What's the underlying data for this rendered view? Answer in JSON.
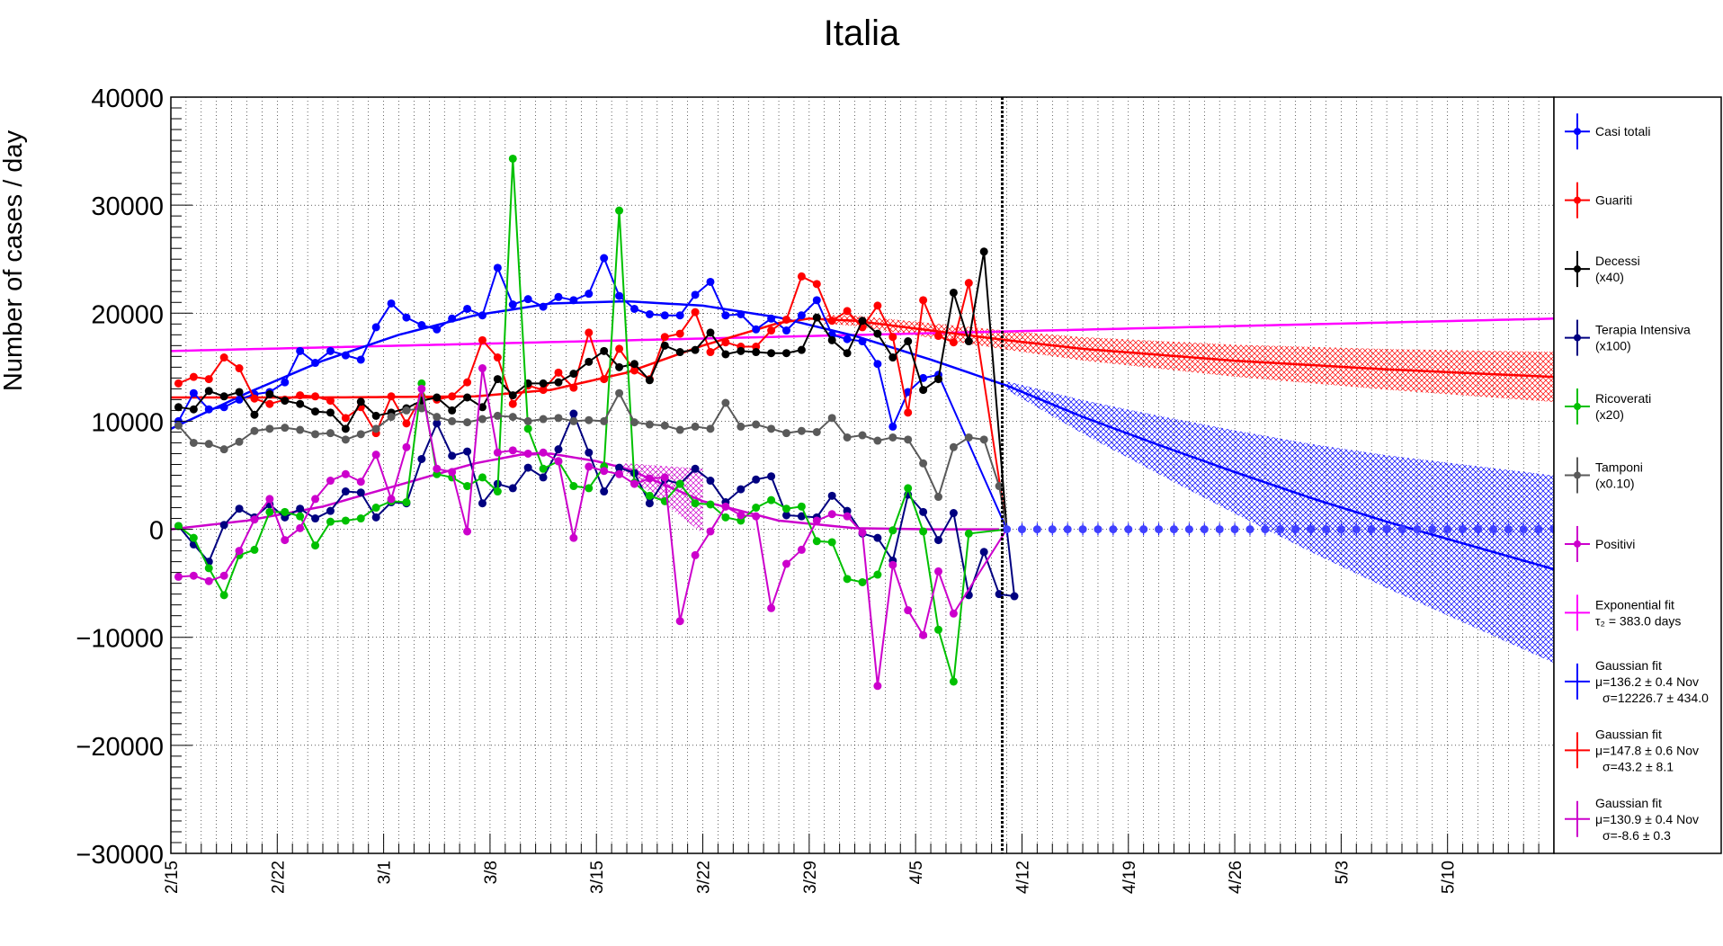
{
  "chart_data": {
    "type": "line",
    "title": "Italia",
    "xlabel": "",
    "ylabel": "Number of cases / day",
    "ylim": [
      -30000,
      40000
    ],
    "yticks": [
      -30000,
      -20000,
      -10000,
      0,
      10000,
      20000,
      30000,
      40000
    ],
    "ytick_labels": [
      "−30000",
      "−20000",
      "−10000",
      "0",
      "10000",
      "20000",
      "30000",
      "40000"
    ],
    "xlim_days": [
      0,
      91
    ],
    "x_ticks": [
      {
        "day": 0,
        "label": "2/15"
      },
      {
        "day": 7,
        "label": "2/22"
      },
      {
        "day": 14,
        "label": "3/1"
      },
      {
        "day": 21,
        "label": "3/8"
      },
      {
        "day": 28,
        "label": "3/15"
      },
      {
        "day": 35,
        "label": "3/22"
      },
      {
        "day": 42,
        "label": "3/29"
      },
      {
        "day": 49,
        "label": "4/5"
      },
      {
        "day": 56,
        "label": "4/12"
      },
      {
        "day": 63,
        "label": "4/19"
      },
      {
        "day": 70,
        "label": "4/26"
      },
      {
        "day": 77,
        "label": "5/3"
      },
      {
        "day": 84,
        "label": "5/10"
      }
    ],
    "grid": true,
    "vline_day": 54.7,
    "legend_position": "right",
    "series": [
      {
        "name": "Casi totali",
        "note": "",
        "color": "#0000ff",
        "x_start_day": 0.5,
        "values": [
          10000,
          12600,
          11100,
          11300,
          12000,
          12500,
          12700,
          13600,
          16500,
          15400,
          16500,
          16100,
          15700,
          18700,
          20900,
          19600,
          18900,
          18500,
          19500,
          20400,
          19800,
          24200,
          20800,
          21300,
          20600,
          21500,
          21200,
          21800,
          25100,
          21600,
          20400,
          19900,
          19800,
          19800,
          21700,
          22900,
          19800,
          19900,
          18500,
          19500,
          18400,
          19800,
          21200,
          18000,
          17600,
          17400,
          15300,
          9500,
          12700,
          14000,
          14300
        ]
      },
      {
        "name": "Guariti",
        "note": "",
        "color": "#ff0000",
        "x_start_day": 0.5,
        "values": [
          13500,
          14100,
          13900,
          15900,
          14900,
          12100,
          11600,
          12000,
          12400,
          12300,
          11900,
          10300,
          11300,
          8900,
          12300,
          9800,
          12300,
          12000,
          12300,
          13600,
          17500,
          15900,
          11600,
          13300,
          12900,
          14500,
          13100,
          18200,
          13900,
          16700,
          14700,
          13900,
          17800,
          18100,
          20100,
          16400,
          17300,
          16900,
          16900,
          18400,
          19400,
          23400,
          22700,
          19300,
          20200,
          18700,
          20700,
          17800,
          10800,
          21200,
          17900,
          17300,
          22800
        ]
      },
      {
        "name": "Decessi",
        "note": "(x40)",
        "color": "#000000",
        "x_start_day": 0.5,
        "values": [
          11300,
          11100,
          12800,
          12300,
          12700,
          10600,
          12500,
          11900,
          11600,
          10900,
          10800,
          9300,
          11800,
          10500,
          10800,
          11200,
          11900,
          12200,
          11000,
          12200,
          11300,
          13900,
          12400,
          13500,
          13500,
          13600,
          14400,
          15500,
          16500,
          15000,
          15300,
          13800,
          17000,
          16400,
          16600,
          18200,
          16200,
          16500,
          16400,
          16300,
          16300,
          16600,
          19600,
          17500,
          16300,
          19300,
          18100,
          15900,
          17400,
          12900,
          13900,
          21900,
          17400,
          25700
        ]
      },
      {
        "name": "Terapia Intensiva",
        "note": "(x100)",
        "color": "#000080",
        "x_start_day": 0.5,
        "values": [
          300,
          -1400,
          -3000,
          400,
          1900,
          1100,
          2300,
          1100,
          1900,
          1000,
          1700,
          3500,
          3400,
          1100,
          2500,
          2400,
          6500,
          9800,
          6800,
          7200,
          2400,
          4200,
          3800,
          5700,
          4800,
          7400,
          10700,
          7100,
          3500,
          5700,
          5200,
          2400,
          4600,
          4200,
          5600,
          4500,
          2500,
          3700,
          4600,
          4900,
          1300,
          1200,
          1100,
          3100,
          1700,
          -400,
          -800,
          -2900,
          3200,
          1600,
          -1000,
          1500,
          -6100,
          -2100,
          -6000,
          -6200
        ]
      },
      {
        "name": "Ricoverati",
        "note": "(x20)",
        "color": "#00c000",
        "x_start_day": 0.5,
        "values": [
          300,
          -800,
          -3600,
          -6100,
          -2400,
          -1900,
          1600,
          1600,
          1200,
          -1500,
          700,
          800,
          1000,
          2000,
          2600,
          2500,
          13500,
          5100,
          4800,
          4000,
          4800,
          3500,
          34300,
          9300,
          5600,
          6300,
          4000,
          3800,
          5800,
          29500,
          4300,
          3100,
          2600,
          4200,
          2400,
          2300,
          1100,
          800,
          2000,
          2700,
          1900,
          2100,
          -1100,
          -1200,
          -4600,
          -4900,
          -4200,
          -100,
          3800,
          -200,
          -9300,
          -14100,
          -400
        ]
      },
      {
        "name": "Tamponi",
        "note": "(x0.10)",
        "color": "#5a5a5a",
        "x_start_day": 0.5,
        "values": [
          9600,
          8000,
          7900,
          7400,
          8100,
          9100,
          9300,
          9400,
          9200,
          8800,
          8900,
          8300,
          8800,
          9300,
          10400,
          11000,
          11200,
          10400,
          10000,
          9900,
          10200,
          10500,
          10400,
          10000,
          10200,
          10300,
          10000,
          10100,
          10000,
          12600,
          9900,
          9700,
          9600,
          9200,
          9500,
          9300,
          11700,
          9500,
          9700,
          9300,
          8900,
          9100,
          9000,
          10300,
          8500,
          8700,
          8200,
          8500,
          8300,
          6100,
          3000,
          7600,
          8500,
          8300,
          4000
        ]
      },
      {
        "name": "Positivi",
        "note": "",
        "color": "#cc00cc",
        "x_start_day": 0.5,
        "values": [
          -4400,
          -4300,
          -4800,
          -4300,
          -2000,
          900,
          2800,
          -1000,
          100,
          2800,
          4500,
          5100,
          4400,
          6900,
          2800,
          7600,
          13000,
          5600,
          5300,
          -200,
          14900,
          7100,
          7300,
          7000,
          7100,
          6300,
          -800,
          5800,
          5400,
          5100,
          4200,
          4700,
          4800,
          -8500,
          -2400,
          -200,
          2100,
          1300,
          1200,
          -7300,
          -3200,
          -1900,
          800,
          1400,
          1200,
          -300,
          -14500,
          -3300,
          -7500,
          -9800,
          -3900,
          -7800
        ]
      },
      {
        "name": "Exponential fit",
        "note": "τ₂ = 383.0 days",
        "color": "#ff00ff",
        "x": [
          0,
          91
        ],
        "values": [
          16500,
          19500
        ]
      },
      {
        "name": "Gaussian fit",
        "note": "μ=136.2 ± 0.4 Nov",
        "note2": "σ=12226.7 ± 434.0",
        "color": "#0000ff",
        "x": [
          0,
          5,
          10,
          15,
          20,
          25,
          30,
          35,
          40,
          45,
          50,
          55,
          60,
          65,
          70,
          75,
          80,
          85,
          91
        ],
        "values": [
          9300,
          12600,
          15600,
          18000,
          19800,
          20900,
          21100,
          20700,
          19600,
          17900,
          15700,
          13300,
          10400,
          7800,
          5300,
          2900,
          700,
          -1300,
          -3700
        ]
      },
      {
        "name": "Gaussian fit",
        "note": "μ=147.8 ± 0.6 Nov",
        "note2": "σ=43.2 ± 8.1",
        "color": "#ff0000",
        "x": [
          0,
          10,
          20,
          25,
          30,
          35,
          40,
          42,
          45,
          50,
          55,
          60,
          70,
          80,
          91
        ],
        "values": [
          12200,
          12200,
          12300,
          12900,
          14500,
          17000,
          19100,
          19500,
          19300,
          18400,
          17500,
          16700,
          15600,
          14800,
          14100
        ]
      },
      {
        "name": "Gaussian fit",
        "note": "μ=130.9 ± 0.4 Nov",
        "note2": "σ=-8.6 ± 0.3",
        "color": "#cc00cc",
        "x": [
          0,
          5,
          10,
          15,
          20,
          23,
          25,
          28,
          30,
          35,
          40,
          45,
          50,
          55,
          91
        ],
        "values": [
          0,
          800,
          2100,
          4100,
          6100,
          6900,
          7000,
          6300,
          5600,
          2600,
          800,
          100,
          0,
          0,
          0
        ]
      }
    ],
    "zero_markers_from_day": 55,
    "zero_markers_to_day": 91
  }
}
